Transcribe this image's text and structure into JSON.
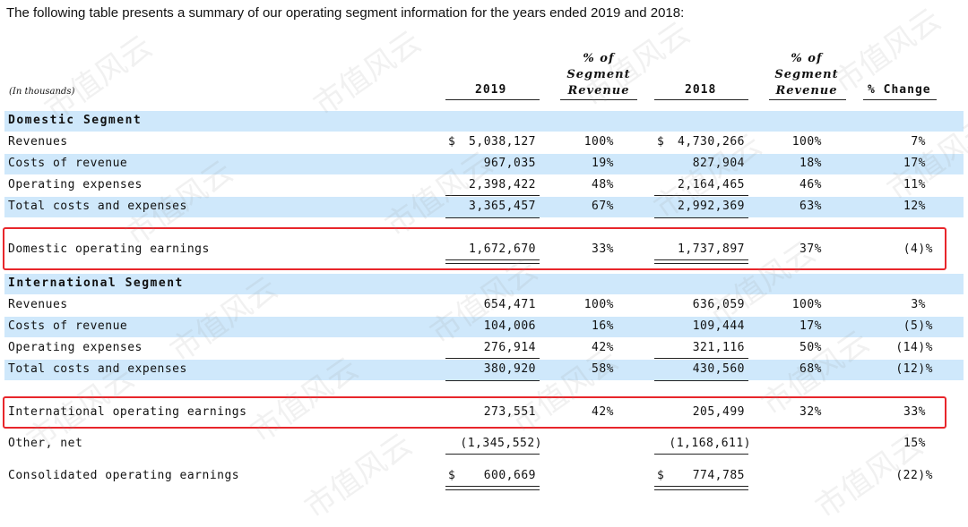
{
  "intro": "The following table presents a summary of our operating segment information for the years ended 2019 and 2018:",
  "header": {
    "unit": "(In thousands)",
    "col_2019": "2019",
    "col_pct_2019": [
      "% of",
      "Segment",
      "Revenue"
    ],
    "col_2018": "2018",
    "col_pct_2018": [
      "% of",
      "Segment",
      "Revenue"
    ],
    "col_change": "% Change"
  },
  "domestic": {
    "title": "Domestic Segment",
    "rows": [
      {
        "label": "Revenues",
        "d2019": "$",
        "v2019": "5,038,127",
        "p2019": "100%",
        "d2018": "$",
        "v2018": "4,730,266",
        "p2018": "100%",
        "chg": "7%"
      },
      {
        "label": "Costs of revenue",
        "d2019": "",
        "v2019": "967,035",
        "p2019": "19%",
        "d2018": "",
        "v2018": "827,904",
        "p2018": "18%",
        "chg": "17%"
      },
      {
        "label": "Operating expenses",
        "d2019": "",
        "v2019": "2,398,422",
        "p2019": "48%",
        "d2018": "",
        "v2018": "2,164,465",
        "p2018": "46%",
        "chg": "11%"
      },
      {
        "label": "Total costs and expenses",
        "d2019": "",
        "v2019": "3,365,457",
        "p2019": "67%",
        "d2018": "",
        "v2018": "2,992,369",
        "p2018": "63%",
        "chg": "12%"
      }
    ],
    "earnings": {
      "label": "Domestic operating earnings",
      "v2019": "1,672,670",
      "p2019": "33%",
      "v2018": "1,737,897",
      "p2018": "37%",
      "chg": "(4)%"
    }
  },
  "international": {
    "title": "International Segment",
    "rows": [
      {
        "label": "Revenues",
        "d2019": "",
        "v2019": "654,471",
        "p2019": "100%",
        "d2018": "",
        "v2018": "636,059",
        "p2018": "100%",
        "chg": "3%"
      },
      {
        "label": "Costs of revenue",
        "d2019": "",
        "v2019": "104,006",
        "p2019": "16%",
        "d2018": "",
        "v2018": "109,444",
        "p2018": "17%",
        "chg": "(5)%"
      },
      {
        "label": "Operating expenses",
        "d2019": "",
        "v2019": "276,914",
        "p2019": "42%",
        "d2018": "",
        "v2018": "321,116",
        "p2018": "50%",
        "chg": "(14)%"
      },
      {
        "label": "Total costs and expenses",
        "d2019": "",
        "v2019": "380,920",
        "p2019": "58%",
        "d2018": "",
        "v2018": "430,560",
        "p2018": "68%",
        "chg": "(12)%"
      }
    ],
    "earnings": {
      "label": "International operating earnings",
      "v2019": "273,551",
      "p2019": "42%",
      "v2018": "205,499",
      "p2018": "32%",
      "chg": "33%"
    }
  },
  "other": {
    "label": "Other, net",
    "v2019": "(1,345,552)",
    "v2018": "(1,168,611)",
    "chg": "15%"
  },
  "consolidated": {
    "label": "Consolidated operating earnings",
    "d2019": "$",
    "v2019": "600,669",
    "d2018": "$",
    "v2018": "774,785",
    "chg": "(22)%"
  },
  "watermark": "市值风云",
  "colors": {
    "row_blue": "#cfe8fb",
    "highlight_box": "#e8262b"
  }
}
